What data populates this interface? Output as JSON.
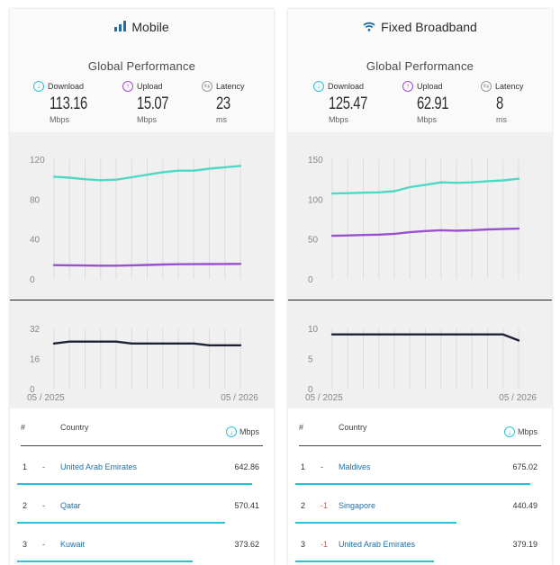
{
  "colors": {
    "download": "#2dbfd7",
    "upload": "#a34fd1",
    "latency": "#9a9a9a",
    "line_latency": "#1e2235",
    "line_download": "#4ed9c6",
    "line_upload": "#9c4fd0",
    "country_link": "#1f6fa5",
    "rank_down": "#e04d4d"
  },
  "mobile": {
    "title": "Mobile",
    "icon": "signal-bars-icon",
    "perf_title": "Global Performance",
    "metrics": {
      "download": {
        "label": "Download",
        "value": "113.16",
        "unit": "Mbps"
      },
      "upload": {
        "label": "Upload",
        "value": "15.07",
        "unit": "Mbps"
      },
      "latency": {
        "label": "Latency",
        "value": "23",
        "unit": "ms"
      }
    },
    "table": {
      "rank_header": "#",
      "country_header": "Country",
      "unit_header": "Mbps",
      "rows": [
        {
          "rank": "1",
          "change": "-",
          "country": "United Arab Emirates",
          "value": "642.86",
          "fraction": 0.95
        },
        {
          "rank": "2",
          "change": "-",
          "country": "Qatar",
          "value": "570.41",
          "fraction": 0.84
        },
        {
          "rank": "3",
          "change": "-",
          "country": "Kuwait",
          "value": "373.62",
          "fraction": 0.71
        }
      ]
    }
  },
  "fixed": {
    "title": "Fixed Broadband",
    "icon": "wifi-icon",
    "perf_title": "Global Performance",
    "metrics": {
      "download": {
        "label": "Download",
        "value": "125.47",
        "unit": "Mbps"
      },
      "upload": {
        "label": "Upload",
        "value": "62.91",
        "unit": "Mbps"
      },
      "latency": {
        "label": "Latency",
        "value": "8",
        "unit": "ms"
      }
    },
    "table": {
      "rank_header": "#",
      "country_header": "Country",
      "unit_header": "Mbps",
      "rows": [
        {
          "rank": "1",
          "change": "-",
          "country": "Maldives",
          "value": "675.02",
          "fraction": 0.95
        },
        {
          "rank": "2",
          "change": "-1",
          "country": "Singapore",
          "value": "440.49",
          "fraction": 0.65
        },
        {
          "rank": "3",
          "change": "-1",
          "country": "United Arab Emirates",
          "value": "379.19",
          "fraction": 0.56
        }
      ]
    }
  },
  "chart_data": [
    {
      "type": "line",
      "id": "mobile-speed",
      "x": [
        "05 / 2025",
        "06 / 2025",
        "07 / 2025",
        "08 / 2025",
        "09 / 2025",
        "10 / 2025",
        "11 / 2025",
        "12 / 2025",
        "01 / 2026",
        "02 / 2026",
        "03 / 2026",
        "04 / 2026",
        "05 / 2026"
      ],
      "series": [
        {
          "key": "download",
          "values": [
            102.5,
            101.5,
            100,
            99,
            99.5,
            102,
            104.5,
            107,
            108.5,
            108.5,
            110.5,
            112,
            113.2
          ]
        },
        {
          "key": "upload",
          "values": [
            13.8,
            13.6,
            13.4,
            13.3,
            13.3,
            13.6,
            14,
            14.4,
            14.7,
            14.8,
            14.9,
            15,
            15.1
          ]
        }
      ],
      "yticks": [
        0,
        40,
        80,
        120
      ],
      "ylim": [
        0,
        120
      ],
      "grid": true
    },
    {
      "type": "line",
      "id": "mobile-latency",
      "x": [
        "05 / 2025",
        "06 / 2025",
        "07 / 2025",
        "08 / 2025",
        "09 / 2025",
        "10 / 2025",
        "11 / 2025",
        "12 / 2025",
        "01 / 2026",
        "02 / 2026",
        "03 / 2026",
        "04 / 2026",
        "05 / 2026"
      ],
      "series": [
        {
          "key": "latency",
          "values": [
            24,
            25,
            25,
            25,
            25,
            24,
            24,
            24,
            24,
            24,
            23,
            23,
            23
          ]
        }
      ],
      "yticks": [
        0,
        16,
        32
      ],
      "ylim": [
        0,
        32
      ],
      "xtick_labels": [
        "05 / 2025",
        "05 / 2026"
      ],
      "grid": true
    },
    {
      "type": "line",
      "id": "fixed-speed",
      "x": [
        "05 / 2025",
        "06 / 2025",
        "07 / 2025",
        "08 / 2025",
        "09 / 2025",
        "10 / 2025",
        "11 / 2025",
        "12 / 2025",
        "01 / 2026",
        "02 / 2026",
        "03 / 2026",
        "04 / 2026",
        "05 / 2026"
      ],
      "series": [
        {
          "key": "download",
          "values": [
            107,
            107.5,
            108,
            108.5,
            110,
            115,
            118,
            121,
            120.5,
            121,
            122.5,
            123.5,
            125.5
          ]
        },
        {
          "key": "upload",
          "values": [
            54,
            54.5,
            55,
            55.5,
            56.5,
            58.5,
            60,
            61,
            60.5,
            61,
            62,
            62.5,
            63
          ]
        }
      ],
      "yticks": [
        0,
        50,
        100,
        150
      ],
      "ylim": [
        0,
        150
      ],
      "grid": true
    },
    {
      "type": "line",
      "id": "fixed-latency",
      "x": [
        "05 / 2025",
        "06 / 2025",
        "07 / 2025",
        "08 / 2025",
        "09 / 2025",
        "10 / 2025",
        "11 / 2025",
        "12 / 2025",
        "01 / 2026",
        "02 / 2026",
        "03 / 2026",
        "04 / 2026",
        "05 / 2026"
      ],
      "series": [
        {
          "key": "latency",
          "values": [
            9,
            9,
            9,
            9,
            9,
            9,
            9,
            9,
            9,
            9,
            9,
            9,
            8
          ]
        }
      ],
      "yticks": [
        0,
        5,
        10
      ],
      "ylim": [
        0,
        10
      ],
      "xtick_labels": [
        "05 / 2025",
        "05 / 2026"
      ],
      "grid": true
    }
  ]
}
